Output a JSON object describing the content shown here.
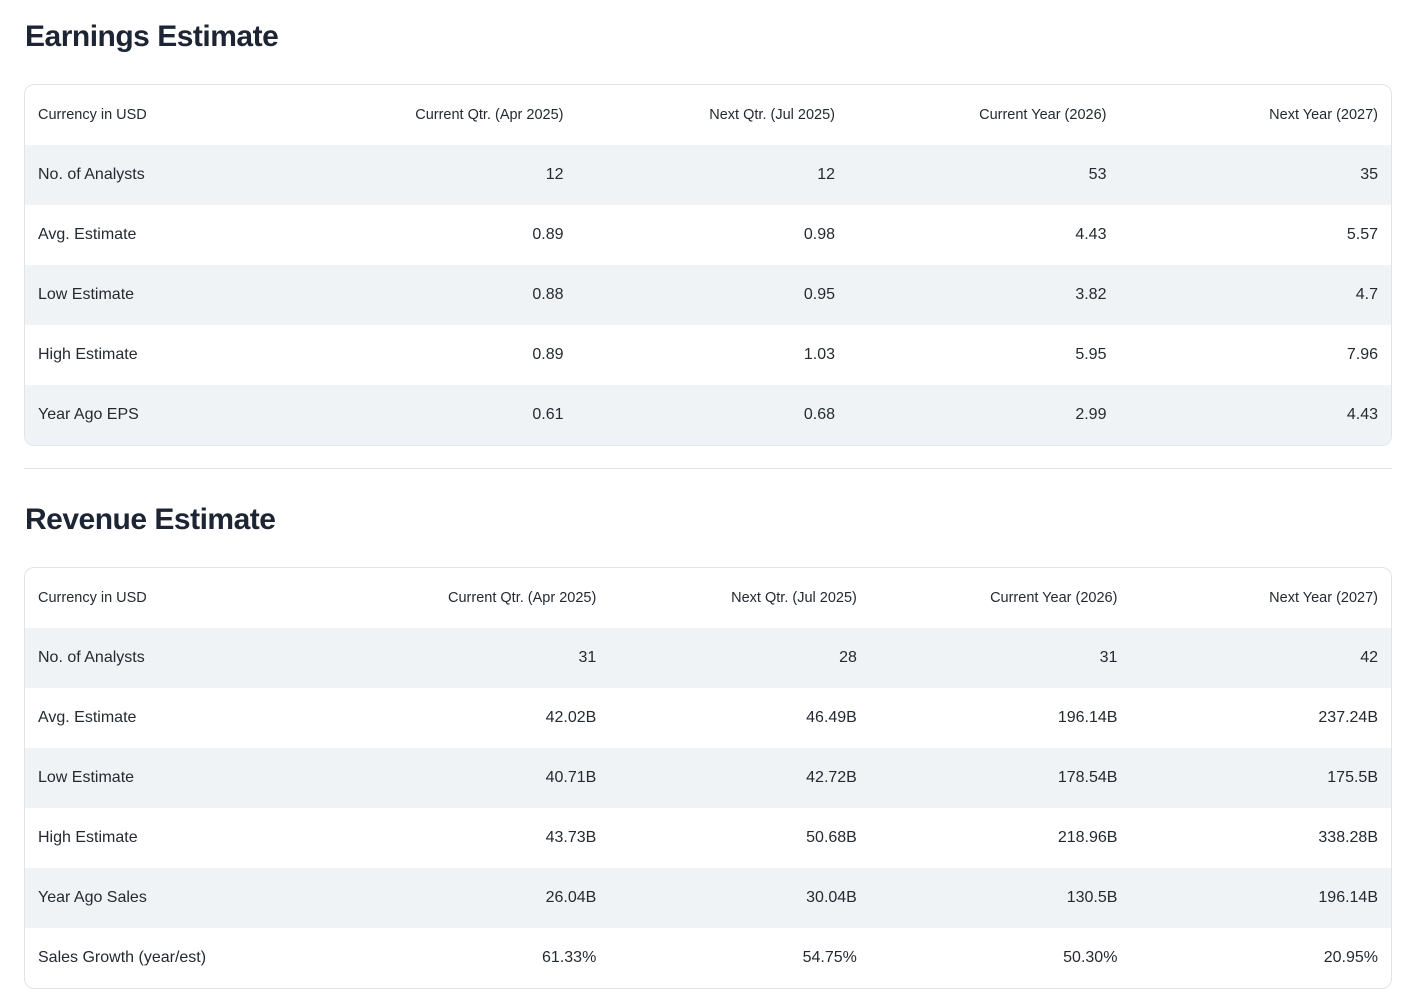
{
  "colors": {
    "background": "#ffffff",
    "stripe": "#f0f3f5",
    "card_border": "#e0e4e9",
    "text": "#232a31",
    "heading": "#1d2433"
  },
  "sections": [
    {
      "title": "Earnings Estimate",
      "table": {
        "columns": [
          "Currency in USD",
          "Current Qtr. (Apr 2025)",
          "Next Qtr. (Jul 2025)",
          "Current Year (2026)",
          "Next Year (2027)"
        ],
        "rows": [
          {
            "label": "No. of Analysts",
            "values": [
              "12",
              "12",
              "53",
              "35"
            ]
          },
          {
            "label": "Avg. Estimate",
            "values": [
              "0.89",
              "0.98",
              "4.43",
              "5.57"
            ]
          },
          {
            "label": "Low Estimate",
            "values": [
              "0.88",
              "0.95",
              "3.82",
              "4.7"
            ]
          },
          {
            "label": "High Estimate",
            "values": [
              "0.89",
              "1.03",
              "5.95",
              "7.96"
            ]
          },
          {
            "label": "Year Ago EPS",
            "values": [
              "0.61",
              "0.68",
              "2.99",
              "4.43"
            ]
          }
        ]
      }
    },
    {
      "title": "Revenue Estimate",
      "table": {
        "columns": [
          "Currency in USD",
          "Current Qtr. (Apr 2025)",
          "Next Qtr. (Jul 2025)",
          "Current Year (2026)",
          "Next Year (2027)"
        ],
        "rows": [
          {
            "label": "No. of Analysts",
            "values": [
              "31",
              "28",
              "31",
              "42"
            ]
          },
          {
            "label": "Avg. Estimate",
            "values": [
              "42.02B",
              "46.49B",
              "196.14B",
              "237.24B"
            ]
          },
          {
            "label": "Low Estimate",
            "values": [
              "40.71B",
              "42.72B",
              "178.54B",
              "175.5B"
            ]
          },
          {
            "label": "High Estimate",
            "values": [
              "43.73B",
              "50.68B",
              "218.96B",
              "338.28B"
            ]
          },
          {
            "label": "Year Ago Sales",
            "values": [
              "26.04B",
              "30.04B",
              "130.5B",
              "196.14B"
            ]
          },
          {
            "label": "Sales Growth (year/est)",
            "values": [
              "61.33%",
              "54.75%",
              "50.30%",
              "20.95%"
            ]
          }
        ]
      }
    }
  ]
}
